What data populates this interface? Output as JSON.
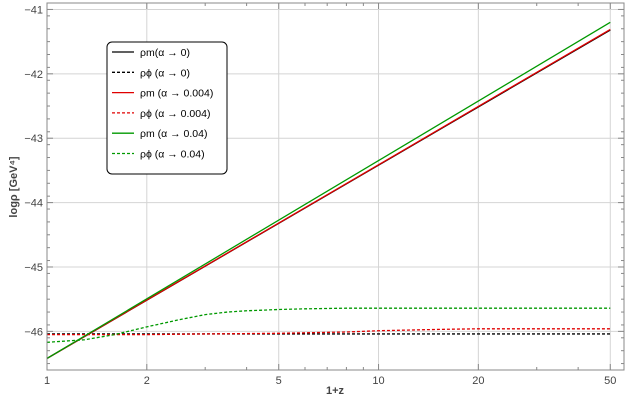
{
  "chart_data": {
    "type": "line",
    "xlabel": "1+z",
    "ylabel": "logρ  [GeV⁴]",
    "xscale": "log",
    "xlim": [
      1,
      55
    ],
    "ylim": [
      -46.6,
      -40.9
    ],
    "xticks": [
      {
        "value": 1,
        "label": "1"
      },
      {
        "value": 2,
        "label": "2"
      },
      {
        "value": 5,
        "label": "5"
      },
      {
        "value": 10,
        "label": "10"
      },
      {
        "value": 20,
        "label": "20"
      },
      {
        "value": 50,
        "label": "50"
      }
    ],
    "yticks": [
      {
        "value": -41,
        "label": "−41"
      },
      {
        "value": -42,
        "label": "−42"
      },
      {
        "value": -43,
        "label": "−43"
      },
      {
        "value": -44,
        "label": "−44"
      },
      {
        "value": -45,
        "label": "−45"
      },
      {
        "value": -46,
        "label": "−46"
      }
    ],
    "grid": true,
    "legend_position": "top-left",
    "series": [
      {
        "name": "ρm(α → 0)",
        "color": "#000000",
        "dash": "solid",
        "x": [
          1,
          50
        ],
        "y": [
          -46.42,
          -41.32
        ]
      },
      {
        "name": "ρϕ (α → 0)",
        "color": "#000000",
        "dash": "dashed",
        "x": [
          1,
          2,
          5,
          10,
          20,
          50
        ],
        "y": [
          -46.04,
          -46.04,
          -46.04,
          -46.04,
          -46.04,
          -46.04
        ]
      },
      {
        "name": "ρm (α → 0.004)",
        "color": "#e00000",
        "dash": "solid",
        "x": [
          1,
          50
        ],
        "y": [
          -46.42,
          -41.31
        ]
      },
      {
        "name": "ρϕ (α → 0.004)",
        "color": "#e00000",
        "dash": "dashed",
        "x": [
          1,
          1.5,
          2,
          3,
          5,
          8,
          10,
          15,
          20,
          30,
          50
        ],
        "y": [
          -46.05,
          -46.05,
          -46.05,
          -46.04,
          -46.03,
          -46.01,
          -45.99,
          -45.97,
          -45.96,
          -45.96,
          -45.96
        ]
      },
      {
        "name": "ρm (α → 0.04)",
        "color": "#009900",
        "dash": "solid",
        "x": [
          1,
          50
        ],
        "y": [
          -46.42,
          -41.2
        ]
      },
      {
        "name": "ρϕ (α → 0.04)",
        "color": "#009900",
        "dash": "dashed",
        "x": [
          1,
          1.3,
          1.6,
          2,
          2.5,
          3,
          3.5,
          4,
          4.5,
          5,
          6,
          8,
          10,
          20,
          50
        ],
        "y": [
          -46.17,
          -46.13,
          -46.05,
          -45.93,
          -45.82,
          -45.74,
          -45.7,
          -45.68,
          -45.67,
          -45.66,
          -45.65,
          -45.64,
          -45.64,
          -45.64,
          -45.64
        ]
      }
    ]
  }
}
